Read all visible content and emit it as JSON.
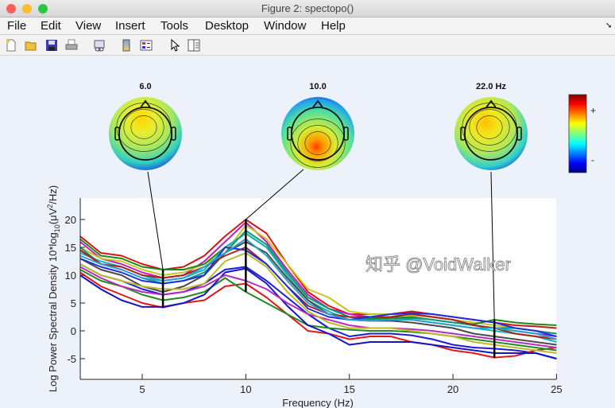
{
  "window": {
    "title": "Figure 2: spectopo()"
  },
  "menu": [
    "File",
    "Edit",
    "View",
    "Insert",
    "Tools",
    "Desktop",
    "Window",
    "Help"
  ],
  "toolbar": [
    "new-figure-icon",
    "open-file-icon",
    "save-icon",
    "print-icon",
    "link-icon",
    "colorbar-icon",
    "legend-icon",
    "pointer-icon",
    "property-editor-icon"
  ],
  "topoplots": [
    {
      "label": "6.0",
      "freq": 6
    },
    {
      "label": "10.0",
      "freq": 10
    },
    {
      "label": "22.0 Hz",
      "freq": 22
    }
  ],
  "colorbar": {
    "plus": "+",
    "minus": "-"
  },
  "watermark": "知乎 @VoidWalker",
  "chart_data": {
    "type": "line",
    "xlabel": "Frequency (Hz)",
    "ylabel": "Log Power Spectral Density 10*log10(μV²/Hz)",
    "ylabel_parts": {
      "a": "Log Power Spectral Density 10*log",
      "sub": "10",
      "b": "(μV",
      "sup": "2",
      "c": "/Hz)"
    },
    "xlim": [
      2,
      25
    ],
    "ylim": [
      -8.7,
      23.2
    ],
    "xticks": [
      5,
      10,
      15,
      20,
      25
    ],
    "yticks": [
      -5,
      0,
      5,
      10,
      15,
      20
    ],
    "grid": false,
    "x": [
      2,
      3,
      4,
      5,
      6,
      7,
      8,
      9,
      10,
      11,
      12,
      13,
      14,
      15,
      16,
      17,
      18,
      19,
      20,
      21,
      22,
      23,
      24,
      25
    ],
    "markers": [
      {
        "freq": 6,
        "min": 4.2,
        "max": 11
      },
      {
        "freq": 10,
        "min": 7,
        "max": 20
      },
      {
        "freq": 22,
        "min": -4.8,
        "max": 2
      }
    ],
    "series": [
      {
        "color": "#d41515",
        "values": [
          17,
          14,
          13.5,
          12,
          11,
          11.5,
          13.5,
          17,
          20,
          17.5,
          12,
          7,
          4.5,
          3,
          3,
          3,
          3.5,
          3,
          2.5,
          2,
          1.5,
          1,
          0.8,
          0.5
        ]
      },
      {
        "color": "#c41cb8",
        "values": [
          16,
          13,
          12,
          10.5,
          9.5,
          10,
          12.5,
          16,
          19.5,
          16,
          11,
          6.5,
          4,
          3,
          2.5,
          2.5,
          3,
          2.5,
          2,
          1,
          0.5,
          0,
          -0.5,
          -1
        ]
      },
      {
        "color": "#c9c41e",
        "values": [
          15,
          13,
          12.5,
          11,
          10,
          10.5,
          12,
          14,
          19,
          16.5,
          12,
          7.5,
          6,
          3.5,
          3,
          3,
          2.8,
          2.5,
          2,
          1.5,
          1,
          0.5,
          0,
          -0.5
        ]
      },
      {
        "color": "#178a17",
        "values": [
          16.5,
          13.5,
          13,
          11.5,
          11,
          11,
          12,
          15,
          17.5,
          15,
          10.5,
          6,
          4,
          2.5,
          2.2,
          2.3,
          2.5,
          2,
          1.5,
          1.2,
          2,
          1.5,
          1.2,
          1
        ]
      },
      {
        "color": "#1ab4c0",
        "values": [
          14,
          12.5,
          11.5,
          10,
          9,
          9.5,
          11,
          15,
          17.5,
          15,
          10,
          5.5,
          3.5,
          2,
          2,
          2,
          2,
          1.5,
          1,
          0.5,
          0,
          -0.5,
          -1,
          -2
        ]
      },
      {
        "color": "#129a78",
        "values": [
          15,
          12,
          11,
          9.5,
          8.5,
          9,
          10.5,
          14,
          18,
          15.5,
          10.5,
          6,
          4,
          2.5,
          2,
          2,
          2.3,
          2,
          1.5,
          1,
          0.5,
          0.5,
          0,
          -0.5
        ]
      },
      {
        "color": "#4a4a4a",
        "values": [
          13,
          11,
          10,
          8,
          7,
          8,
          10,
          14,
          16,
          14,
          9.5,
          5.5,
          3,
          2,
          1.8,
          1.8,
          1.5,
          1,
          0.5,
          -0.5,
          -1,
          -1.5,
          -2,
          -2.5
        ]
      },
      {
        "color": "#1c1cd8",
        "values": [
          12,
          10,
          9,
          7.5,
          6.5,
          7,
          8.5,
          11,
          11.5,
          9,
          6,
          3,
          0.5,
          -1,
          -0.5,
          -0.5,
          -0.8,
          -1.5,
          -2.5,
          -3,
          -3.2,
          -3.5,
          -4,
          -5
        ]
      },
      {
        "color": "#e01818",
        "values": [
          10.5,
          8,
          6.5,
          5,
          4.2,
          5,
          5.5,
          8,
          8.5,
          6,
          3,
          0,
          -0.5,
          -1.5,
          -1,
          -1,
          -2,
          -2.5,
          -3.5,
          -4,
          -4.8,
          -4.5,
          -3.5,
          -3
        ]
      },
      {
        "color": "#218a21",
        "values": [
          11,
          9,
          8,
          6.5,
          5.5,
          6,
          7,
          9.5,
          7,
          5,
          3,
          1,
          0.5,
          0.2,
          0,
          0,
          -0.2,
          -0.5,
          -1,
          -1.5,
          -2,
          -2.5,
          -3,
          -3.5
        ]
      },
      {
        "color": "#1515c8",
        "values": [
          10,
          7.5,
          5.5,
          4.3,
          4.3,
          5,
          6.5,
          10.5,
          11.2,
          8.5,
          4.5,
          1,
          -0.5,
          -2.5,
          -2,
          -2,
          -2,
          -2.5,
          -3,
          -3.5,
          -4,
          -4,
          -4,
          -5
        ]
      },
      {
        "color": "#b52cc0",
        "values": [
          11.5,
          9.5,
          8,
          7,
          6.5,
          7,
          8,
          10,
          9,
          7.5,
          5,
          3,
          2,
          1,
          0.5,
          0.5,
          0.3,
          0,
          -0.5,
          -1,
          -1.5,
          -2,
          -2.5,
          -3
        ]
      },
      {
        "color": "#a82020",
        "values": [
          14.5,
          12,
          11.5,
          10,
          9.5,
          10,
          11.5,
          13.5,
          15,
          12,
          8,
          4.5,
          3,
          2.5,
          2.5,
          2.5,
          3,
          2.5,
          2,
          1,
          0.5,
          -0.5,
          -1,
          -1.5
        ]
      },
      {
        "color": "#bdb82a",
        "values": [
          12,
          10,
          9,
          8,
          7.5,
          7.5,
          8.5,
          12.5,
          14,
          11.5,
          7,
          3.5,
          1.5,
          0.5,
          0.5,
          0.5,
          0,
          -0.5,
          -1,
          -2,
          -2.5,
          -3,
          -3.5,
          -4
        ]
      },
      {
        "color": "#2030e0",
        "values": [
          13,
          11.5,
          10.5,
          9,
          8.5,
          9,
          10,
          15,
          14.5,
          12,
          8,
          4,
          2.5,
          2,
          2.5,
          3,
          3.2,
          3,
          2.5,
          2,
          1.5,
          0.5,
          0,
          -1
        ]
      },
      {
        "color": "#2aa0d0",
        "values": [
          13.5,
          12,
          11,
          9.5,
          9,
          9.5,
          11.5,
          14,
          16.5,
          13.5,
          9,
          5,
          3,
          2,
          1.8,
          2,
          2,
          1.5,
          1,
          0.5,
          0.5,
          0,
          -0.5,
          -1.5
        ]
      }
    ]
  }
}
